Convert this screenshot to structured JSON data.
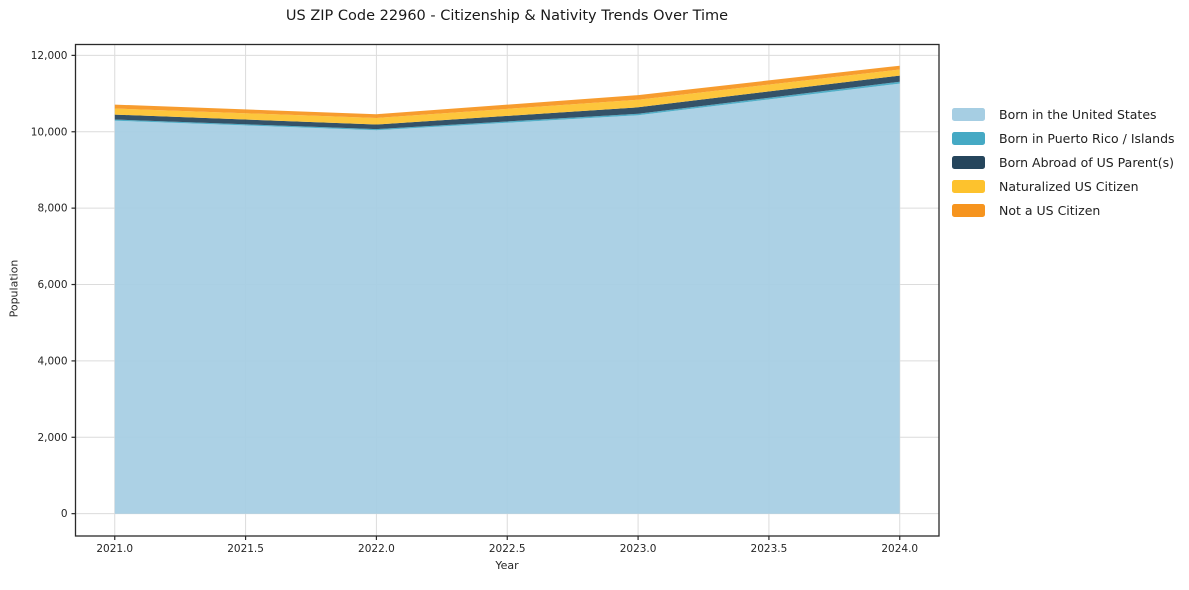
{
  "chart": {
    "title": "US ZIP Code 22960 - Citizenship & Nativity Trends Over Time",
    "xlabel": "Year",
    "ylabel": "Population"
  },
  "chart_data": {
    "type": "area",
    "stacked": true,
    "title": "US ZIP Code 22960 - Citizenship & Nativity Trends Over Time",
    "xlabel": "Year",
    "ylabel": "Population",
    "x": [
      2021,
      2022,
      2023,
      2024
    ],
    "series": [
      {
        "name": "Born in the United States",
        "color": "#a6cee3",
        "values": [
          10290,
          10040,
          10430,
          11260
        ]
      },
      {
        "name": "Born in Puerto Rico / Islands",
        "color": "#45a9c4",
        "values": [
          30,
          30,
          40,
          50
        ]
      },
      {
        "name": "Born Abroad of US Parent(s)",
        "color": "#25455c",
        "values": [
          130,
          120,
          170,
          160
        ]
      },
      {
        "name": "Naturalized US Citizen",
        "color": "#fdc22d",
        "values": [
          160,
          170,
          200,
          160
        ]
      },
      {
        "name": "Not a US Citizen",
        "color": "#f6941e",
        "values": [
          100,
          100,
          120,
          100
        ]
      }
    ],
    "xticks": [
      2021.0,
      2021.5,
      2022.0,
      2022.5,
      2023.0,
      2023.5,
      2024.0
    ],
    "xtick_labels": [
      "2021.0",
      "2021.5",
      "2022.0",
      "2022.5",
      "2023.0",
      "2023.5",
      "2024.0"
    ],
    "yticks": [
      0,
      2000,
      4000,
      6000,
      8000,
      10000,
      12000
    ],
    "ytick_labels": [
      "0",
      "2,000",
      "4,000",
      "6,000",
      "8,000",
      "10,000",
      "12,000"
    ],
    "xlim": [
      2020.85,
      2024.15
    ],
    "ylim": [
      -585,
      12285
    ],
    "grid": true,
    "grid_color": "#dcdcdc",
    "spine_color": "#2a2a2a",
    "legend_position": "right"
  }
}
